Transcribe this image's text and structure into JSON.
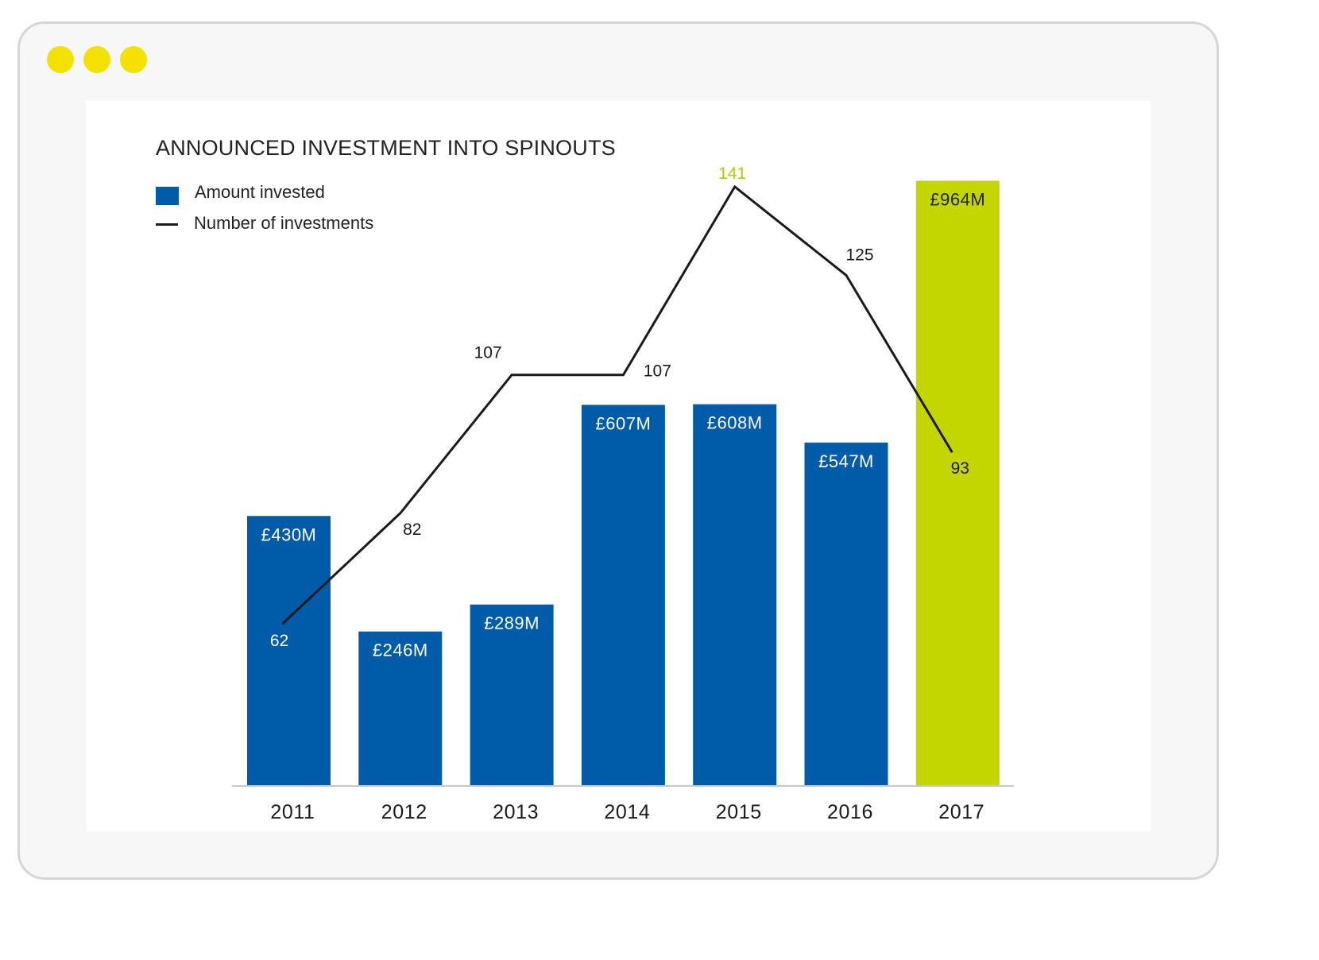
{
  "window": {
    "dots_color": "#f3e200"
  },
  "chart_data": {
    "type": "bar",
    "title": "ANNOUNCED INVESTMENT INTO SPINOUTS",
    "categories": [
      "2011",
      "2012",
      "2013",
      "2014",
      "2015",
      "2016",
      "2017"
    ],
    "series": [
      {
        "name": "Amount invested",
        "kind": "bar",
        "values": [
          430,
          246,
          289,
          607,
          608,
          547,
          964
        ],
        "labels": [
          "£430M",
          "£246M",
          "£289M",
          "£607M",
          "£608M",
          "£547M",
          "£964M"
        ],
        "color": "#005ca9",
        "highlight_color": "#c4d600",
        "highlight_index": 6
      },
      {
        "name": "Number of investments",
        "kind": "line",
        "values": [
          62,
          82,
          107,
          107,
          141,
          125,
          93
        ],
        "labels": [
          "62",
          "82",
          "107",
          "107",
          "141",
          "125",
          "93"
        ],
        "color": "#1a1a1a",
        "peak_label_color": "#b5c800"
      }
    ],
    "legend_position": "top-left",
    "grid": false
  }
}
